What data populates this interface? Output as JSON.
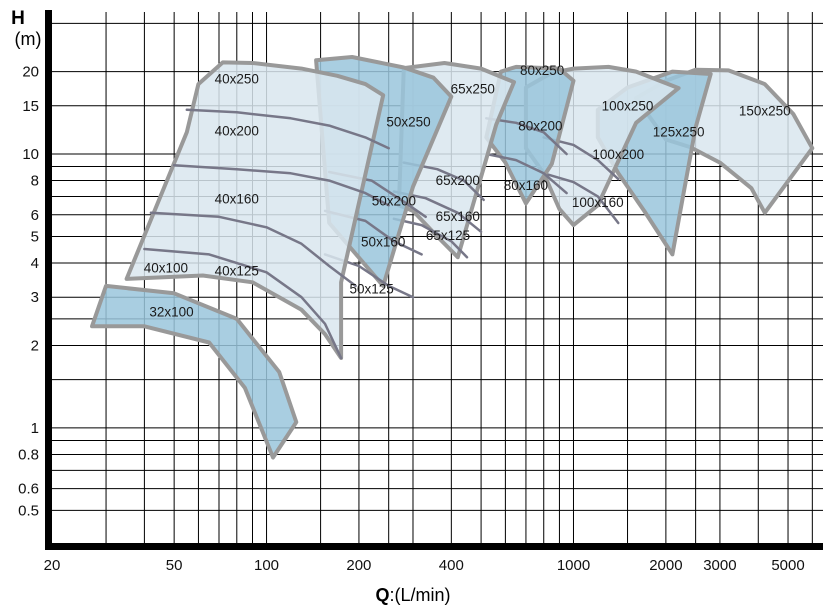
{
  "chart_data": {
    "type": "area",
    "title": "",
    "xlabel_bold": "Q",
    "xlabel_rest": ":(L/min)",
    "ylabel_top": "H",
    "ylabel_bottom": "(m)",
    "x_scale": "log",
    "y_scale": "log",
    "xlim": [
      20,
      6500
    ],
    "ylim": [
      0.38,
      33
    ],
    "grid": true,
    "x_ticks": [
      {
        "value": 20,
        "label": "20"
      },
      {
        "value": 50,
        "label": "50"
      },
      {
        "value": 100,
        "label": "100"
      },
      {
        "value": 200,
        "label": "200"
      },
      {
        "value": 400,
        "label": "400"
      },
      {
        "value": 1000,
        "label": "1000"
      },
      {
        "value": 2000,
        "label": "2000"
      },
      {
        "value": 3000,
        "label": "3000"
      },
      {
        "value": 5000,
        "label": "5000"
      }
    ],
    "x_gridlines": [
      30,
      40,
      50,
      60,
      70,
      80,
      90,
      100,
      150,
      200,
      250,
      300,
      400,
      500,
      600,
      700,
      800,
      900,
      1000,
      1500,
      2000,
      2500,
      3000,
      4000,
      5000,
      6000
    ],
    "y_ticks": [
      {
        "value": 0.5,
        "label": "0.5"
      },
      {
        "value": 0.6,
        "label": "0.6"
      },
      {
        "value": 0.8,
        "label": "0.8"
      },
      {
        "value": 1,
        "label": "1"
      },
      {
        "value": 2,
        "label": "2"
      },
      {
        "value": 3,
        "label": "3"
      },
      {
        "value": 4,
        "label": "4"
      },
      {
        "value": 5,
        "label": "5"
      },
      {
        "value": 6,
        "label": "6"
      },
      {
        "value": 8,
        "label": "8"
      },
      {
        "value": 10,
        "label": "10"
      },
      {
        "value": 15,
        "label": "15"
      },
      {
        "value": 20,
        "label": "20"
      }
    ],
    "y_gridlines": [
      0.5,
      0.6,
      0.7,
      0.8,
      0.9,
      1,
      1.5,
      2,
      2.5,
      3,
      4,
      5,
      6,
      7,
      8,
      9,
      10,
      15,
      20,
      30
    ],
    "colors": {
      "light_fill": "#d9e6ee",
      "blue_fill": "#9ac5dc",
      "outline": "#999999",
      "inner_line": "#777788",
      "grid": "#000000"
    },
    "regions": [
      {
        "label": "150x250",
        "fill": "light",
        "label_at": [
          4200,
          13.8
        ],
        "points": [
          [
            1600,
            16
          ],
          [
            2000,
            18.5
          ],
          [
            2500,
            20.3
          ],
          [
            3200,
            20.2
          ],
          [
            4200,
            18
          ],
          [
            5200,
            14
          ],
          [
            6000,
            10.5
          ],
          [
            4200,
            6.1
          ],
          [
            3800,
            7.5
          ],
          [
            3000,
            9.3
          ],
          [
            2400,
            10.6
          ],
          [
            2000,
            11.3
          ]
        ]
      },
      {
        "label": "125x250",
        "fill": "blue",
        "label_at": [
          2200,
          11.6
        ],
        "points": [
          [
            1200,
            14.5
          ],
          [
            1500,
            17.5
          ],
          [
            2100,
            20
          ],
          [
            2800,
            19.6
          ],
          [
            2500,
            12.5
          ],
          [
            2100,
            4.3
          ],
          [
            1700,
            6.2
          ],
          [
            1400,
            8.5
          ],
          [
            1200,
            11.5
          ]
        ]
      },
      {
        "label": "100x250",
        "fill": "light",
        "label_at": [
          1500,
          14.4
        ],
        "points": [
          [
            700,
            17.5
          ],
          [
            850,
            19.8
          ],
          [
            1000,
            20.5
          ],
          [
            1300,
            20.8
          ],
          [
            1600,
            20
          ],
          [
            2200,
            17.4
          ],
          [
            1600,
            13
          ],
          [
            1200,
            6.5
          ],
          [
            1000,
            5.5
          ],
          [
            900,
            6.3
          ],
          [
            800,
            8.5
          ],
          [
            700,
            10.5
          ]
        ]
      },
      {
        "label": "100x200",
        "fill": "light",
        "label_at": [
          1400,
          9.6
        ],
        "line": true,
        "points": [
          [
            800,
            11.5
          ],
          [
            1000,
            10.8
          ],
          [
            1200,
            9.5
          ],
          [
            1400,
            8.1
          ]
        ]
      },
      {
        "label": "100x160",
        "fill": "light",
        "label_at": [
          1200,
          6.4
        ],
        "line": true,
        "points": [
          [
            800,
            8.5
          ],
          [
            1000,
            7.9
          ],
          [
            1200,
            7.0
          ],
          [
            1400,
            5.6
          ]
        ]
      },
      {
        "label": "80x250",
        "fill": "blue",
        "label_at": [
          790,
          19.4
        ],
        "points": [
          [
            580,
            20
          ],
          [
            650,
            20.8
          ],
          [
            900,
            20.5
          ],
          [
            1000,
            18.5
          ],
          [
            850,
            9.2
          ],
          [
            700,
            6.6
          ],
          [
            600,
            9.3
          ],
          [
            520,
            11.5
          ]
        ]
      },
      {
        "label": "80x200",
        "fill": "blue",
        "label_at": [
          780,
          12.2
        ],
        "line": true,
        "points": [
          [
            520,
            13.5
          ],
          [
            650,
            13
          ],
          [
            800,
            12
          ],
          [
            950,
            10
          ]
        ]
      },
      {
        "label": "80x160",
        "fill": "blue",
        "label_at": [
          700,
          7.4
        ],
        "line": true,
        "points": [
          [
            520,
            10
          ],
          [
            650,
            9.5
          ],
          [
            800,
            8.5
          ],
          [
            950,
            7.2
          ]
        ]
      },
      {
        "label": "65x250",
        "fill": "light",
        "label_at": [
          470,
          16.6
        ],
        "points": [
          [
            280,
            20.6
          ],
          [
            380,
            21.5
          ],
          [
            500,
            20.5
          ],
          [
            640,
            18.3
          ],
          [
            560,
            12.8
          ],
          [
            420,
            4.2
          ],
          [
            360,
            5
          ],
          [
            300,
            6.2
          ],
          [
            270,
            6.5
          ]
        ]
      },
      {
        "label": "65x200",
        "fill": "light",
        "label_at": [
          420,
          7.7
        ],
        "line": true,
        "points": [
          [
            280,
            9.3
          ],
          [
            360,
            8.8
          ],
          [
            440,
            8
          ],
          [
            510,
            6.8
          ]
        ]
      },
      {
        "label": "65x160",
        "fill": "light",
        "label_at": [
          420,
          5.7
        ],
        "line": true,
        "points": [
          [
            260,
            7.3
          ],
          [
            330,
            6.9
          ],
          [
            420,
            6.1
          ],
          [
            500,
            5.2
          ]
        ]
      },
      {
        "label": "65x125",
        "fill": "light",
        "label_at": [
          390,
          4.85
        ],
        "line": true,
        "points": [
          [
            260,
            5.8
          ],
          [
            320,
            5.5
          ],
          [
            400,
            4.8
          ],
          [
            450,
            4.2
          ]
        ]
      },
      {
        "label": "50x250",
        "fill": "blue",
        "label_at": [
          290,
          12.6
        ],
        "points": [
          [
            145,
            22
          ],
          [
            190,
            22.6
          ],
          [
            280,
            20.7
          ],
          [
            350,
            19
          ],
          [
            400,
            16.2
          ],
          [
            300,
            7.6
          ],
          [
            240,
            3.3
          ],
          [
            160,
            5.6
          ]
        ]
      },
      {
        "label": "50x200",
        "fill": "blue",
        "label_at": [
          260,
          6.5
        ],
        "line": true,
        "points": [
          [
            160,
            8.6
          ],
          [
            220,
            8
          ],
          [
            280,
            6.7
          ],
          [
            330,
            5.9
          ]
        ]
      },
      {
        "label": "50x160",
        "fill": "blue",
        "label_at": [
          240,
          4.6
        ],
        "line": true,
        "points": [
          [
            155,
            6.2
          ],
          [
            210,
            5.7
          ],
          [
            260,
            4.8
          ],
          [
            320,
            4.3
          ]
        ]
      },
      {
        "label": "50x125",
        "fill": "blue",
        "label_at": [
          220,
          3.1
        ],
        "line": true,
        "points": [
          [
            155,
            4.3
          ],
          [
            200,
            3.9
          ],
          [
            250,
            3.3
          ],
          [
            300,
            3.0
          ]
        ]
      },
      {
        "label": "40x250",
        "fill": "light",
        "label_at": [
          80,
          18.1
        ],
        "points": [
          [
            72,
            21.6
          ],
          [
            90,
            21.5
          ],
          [
            130,
            20.5
          ],
          [
            170,
            19.3
          ],
          [
            210,
            18
          ],
          [
            240,
            16.4
          ],
          [
            175,
            3.4
          ],
          [
            175,
            1.8
          ],
          [
            155,
            2.2
          ],
          [
            130,
            2.7
          ],
          [
            90,
            3.4
          ],
          [
            62,
            3.6
          ],
          [
            35,
            3.5
          ],
          [
            55,
            12
          ],
          [
            60,
            18
          ]
        ]
      },
      {
        "label": "40x200",
        "fill": "light",
        "label_at": [
          80,
          11.7
        ],
        "line": true,
        "points": [
          [
            55,
            14.5
          ],
          [
            80,
            14.2
          ],
          [
            120,
            13.5
          ],
          [
            160,
            12.7
          ],
          [
            210,
            11.5
          ],
          [
            250,
            10.5
          ]
        ]
      },
      {
        "label": "40x160",
        "fill": "light",
        "label_at": [
          80,
          6.6
        ],
        "line": true,
        "points": [
          [
            50,
            9.1
          ],
          [
            80,
            8.8
          ],
          [
            120,
            8.5
          ],
          [
            160,
            8.0
          ],
          [
            210,
            7.2
          ],
          [
            250,
            6.5
          ]
        ]
      },
      {
        "label": "40x125",
        "fill": "light",
        "label_at": [
          80,
          3.6
        ],
        "line": true,
        "points": [
          [
            42,
            6.1
          ],
          [
            70,
            5.9
          ],
          [
            100,
            5.4
          ],
          [
            130,
            4.7
          ],
          [
            160,
            3.9
          ],
          [
            195,
            3.3
          ]
        ]
      },
      {
        "label": "40x100",
        "fill": "light",
        "label_at": [
          47,
          3.7
        ],
        "line": true,
        "points": [
          [
            40,
            4.5
          ],
          [
            65,
            4.3
          ],
          [
            100,
            3.7
          ],
          [
            130,
            3.0
          ],
          [
            155,
            2.4
          ],
          [
            175,
            1.8
          ]
        ]
      },
      {
        "label": "32x100",
        "fill": "blue",
        "label_at": [
          49,
          2.55
        ],
        "points": [
          [
            30,
            3.3
          ],
          [
            50,
            3.1
          ],
          [
            80,
            2.5
          ],
          [
            110,
            1.6
          ],
          [
            125,
            1.05
          ],
          [
            105,
            0.78
          ],
          [
            85,
            1.4
          ],
          [
            65,
            2.05
          ],
          [
            40,
            2.35
          ],
          [
            27,
            2.35
          ]
        ]
      }
    ]
  }
}
